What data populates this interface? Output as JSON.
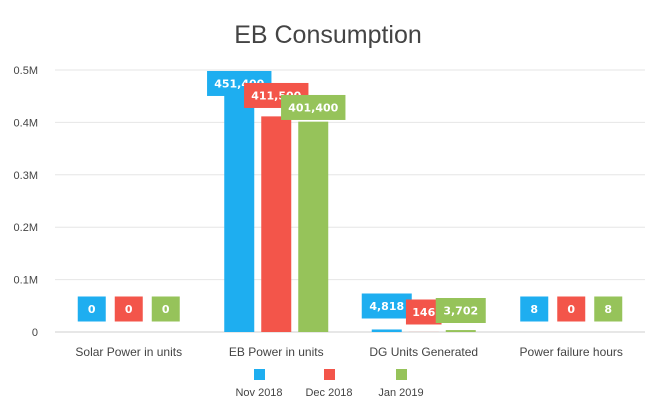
{
  "chart_data": {
    "type": "bar",
    "title": "EB Consumption",
    "xlabel": "",
    "ylabel": "",
    "ylim": [
      0,
      500000
    ],
    "y_ticks": [
      0,
      100000,
      200000,
      300000,
      400000,
      500000
    ],
    "y_tick_labels": [
      "0",
      "0.1M",
      "0.2M",
      "0.3M",
      "0.4M",
      "0.5M"
    ],
    "grid": true,
    "legend_position": "bottom",
    "categories": [
      "Solar Power in units",
      "EB Power in units",
      "DG Units Generated",
      "Power failure hours"
    ],
    "series": [
      {
        "name": "Nov 2018",
        "color": "#1eaef0",
        "values": [
          0,
          451400,
          4818,
          8
        ],
        "labels": [
          "0",
          "451,400",
          "4,818",
          "8"
        ]
      },
      {
        "name": "Dec 2018",
        "color": "#f3554a",
        "values": [
          0,
          411500,
          146,
          0
        ],
        "labels": [
          "0",
          "411,500",
          "146",
          "0"
        ]
      },
      {
        "name": "Jan 2019",
        "color": "#96c35a",
        "values": [
          0,
          401400,
          3702,
          8
        ],
        "labels": [
          "0",
          "401,400",
          "3,702",
          "8"
        ]
      }
    ]
  }
}
